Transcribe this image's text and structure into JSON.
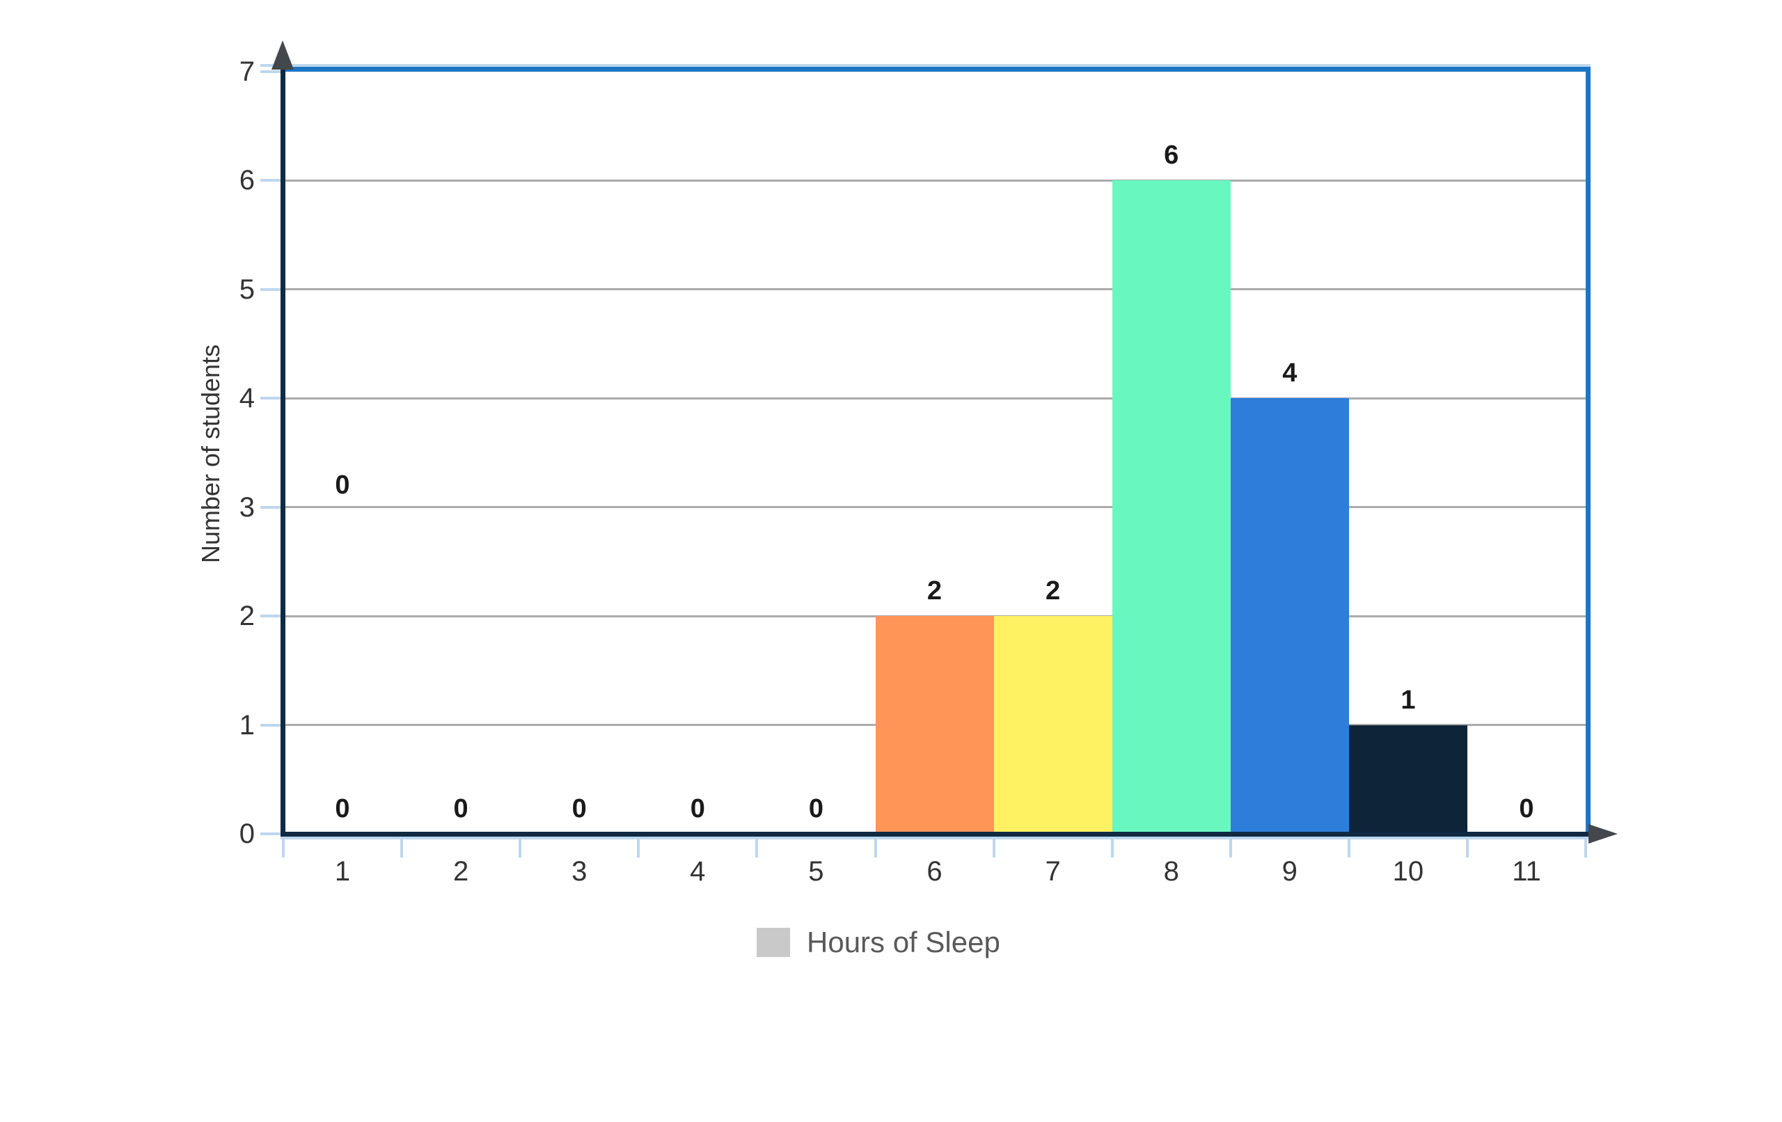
{
  "chart_data": {
    "type": "bar",
    "title": "",
    "categories": [
      "1",
      "2",
      "3",
      "4",
      "5",
      "6",
      "7",
      "8",
      "9",
      "10",
      "11"
    ],
    "values": [
      0,
      0,
      0,
      0,
      0,
      2,
      2,
      6,
      4,
      1,
      0
    ],
    "data_labels": [
      "0",
      "0",
      "0",
      "0",
      "0",
      "2",
      "2",
      "6",
      "4",
      "1",
      "0"
    ],
    "bar_colors": [
      null,
      null,
      null,
      null,
      null,
      "#FF9557",
      "#FFF262",
      "#69F7C0",
      "#2F7DDA",
      "#0E2438",
      null
    ],
    "xlabel": "",
    "ylabel": "Number of students",
    "ylim": [
      0,
      7
    ],
    "yticks": [
      "0",
      "1",
      "2",
      "3",
      "4",
      "5",
      "6",
      "7"
    ],
    "grid": true,
    "bar_gap": 0,
    "legend": {
      "position": "bottom-center",
      "label": "Hours of Sleep",
      "swatch_color": "#C9C9C9"
    },
    "annotations": [
      {
        "text": "0",
        "category_index": 0,
        "y_value": 3.2
      }
    ]
  },
  "colors": {
    "background": "#FFFFFF",
    "frame_blue": "#1B76C5",
    "axis_navy": "#102A43",
    "gridline_gray": "#ABABAB",
    "tick_light_blue": "#BDD7EE",
    "arrow_charcoal": "#44484C",
    "data_label_dark": "#1A1A1A",
    "tick_label_gray": "#333333",
    "legend_text_gray": "#595959",
    "legend_swatch_gray": "#C9C9C9"
  }
}
